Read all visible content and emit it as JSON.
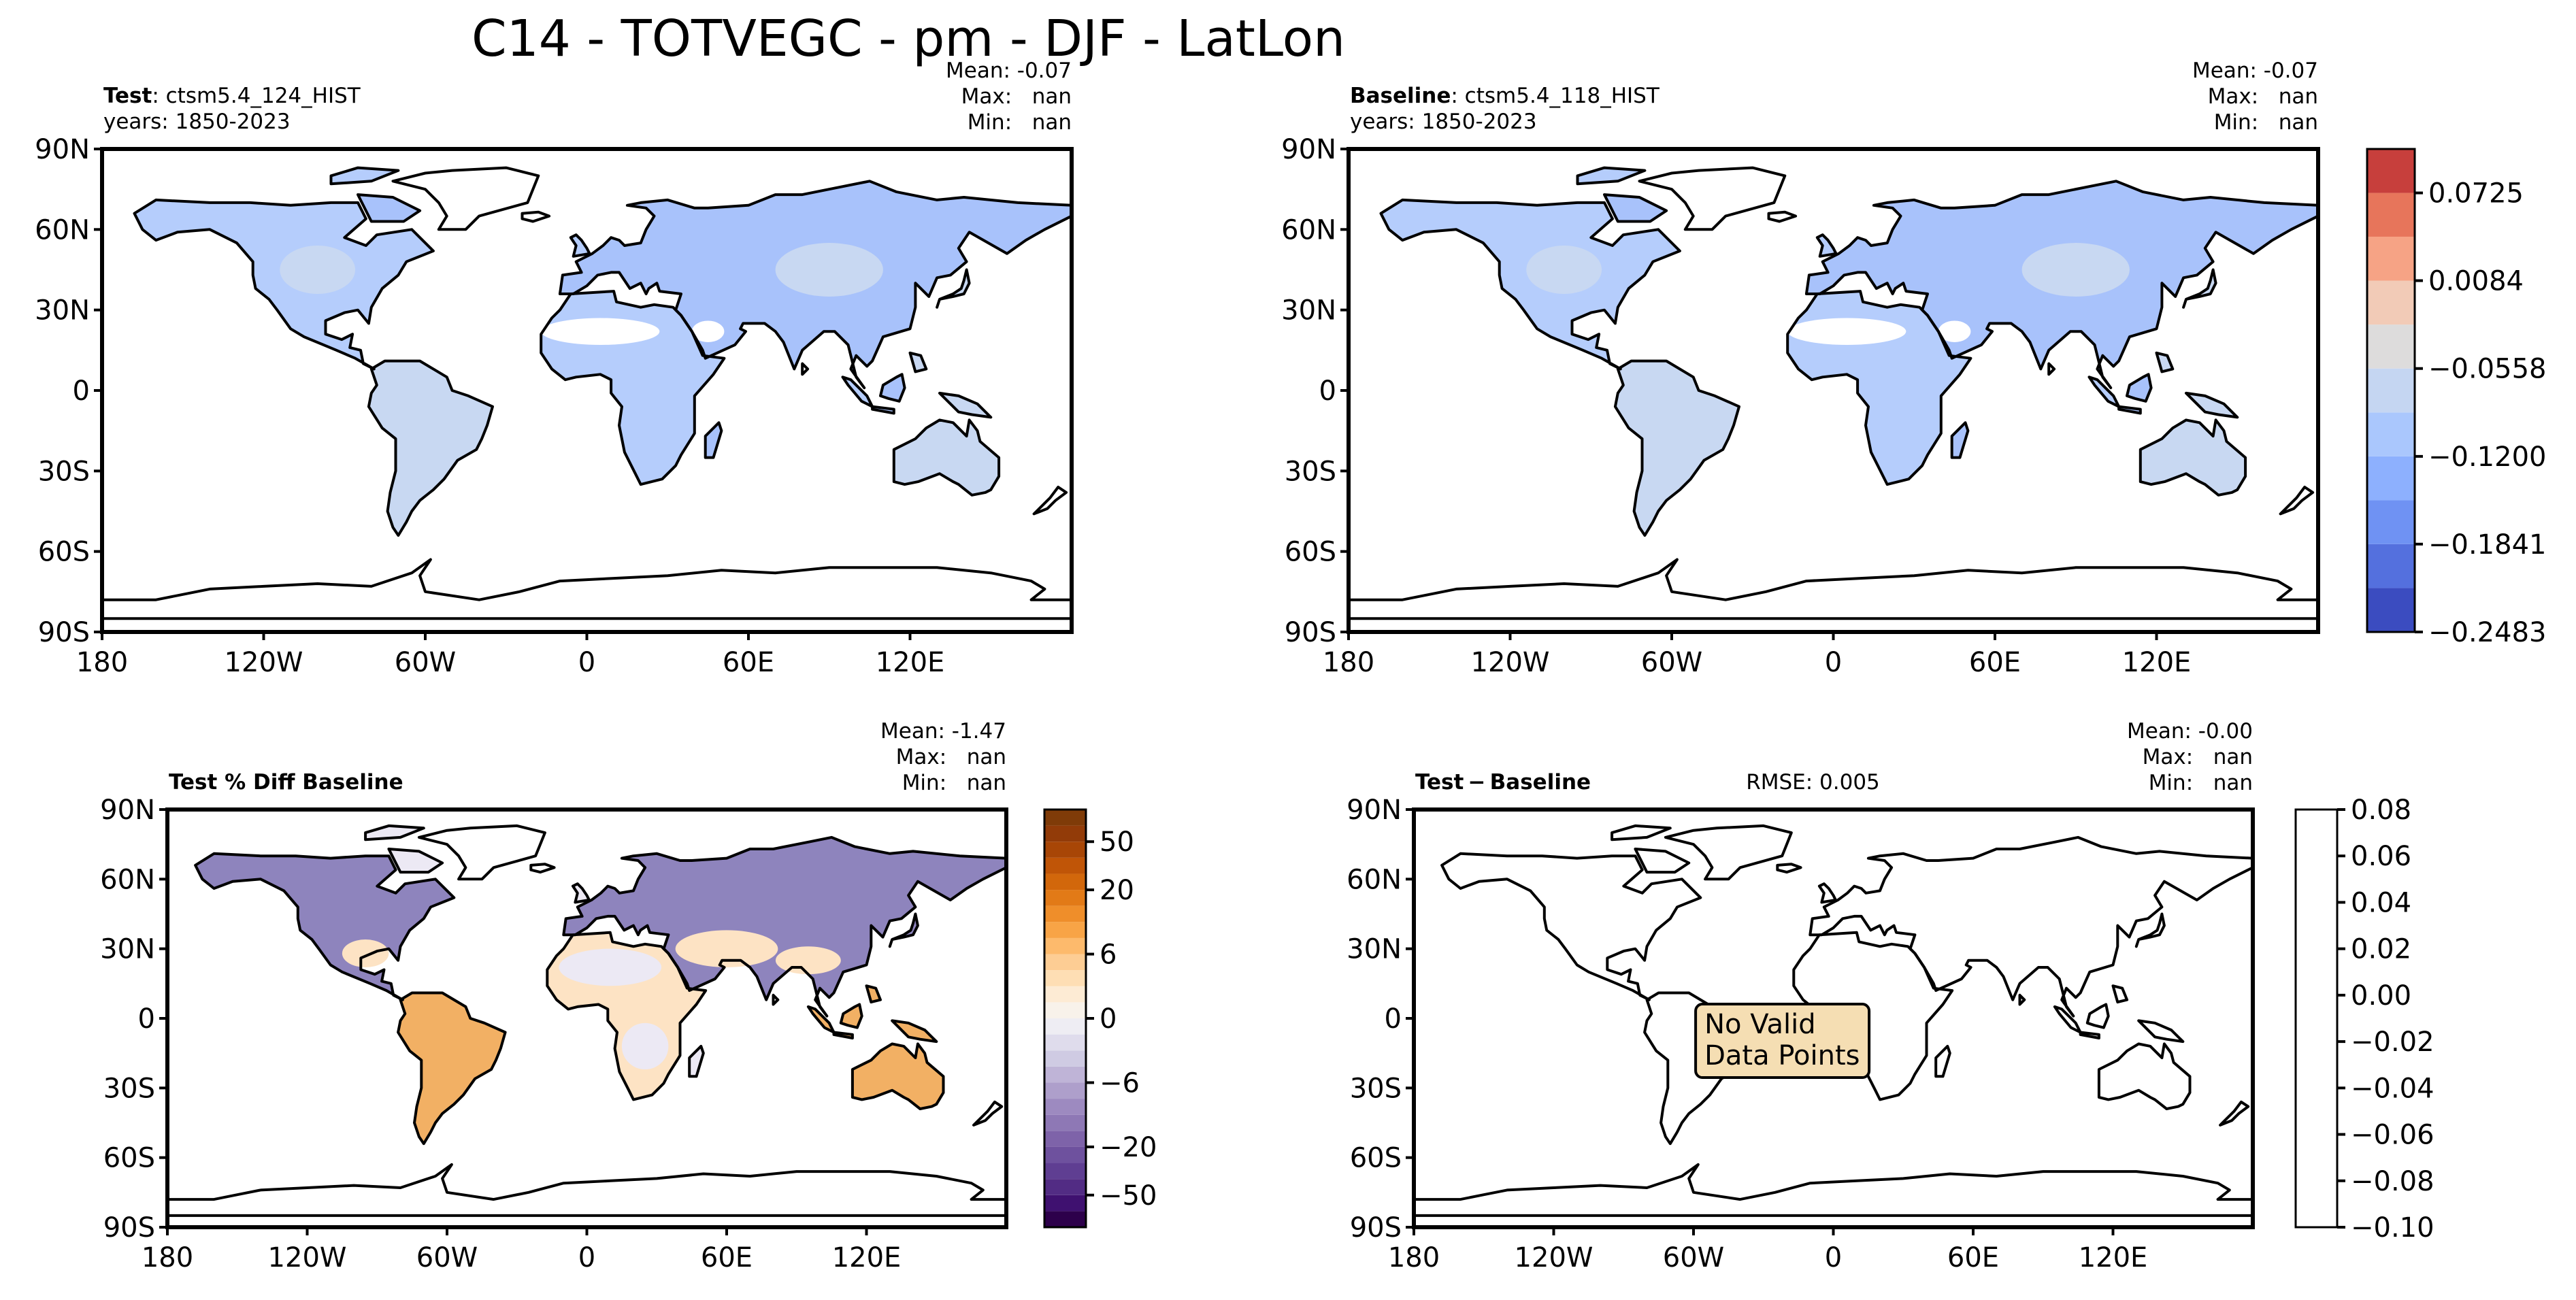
{
  "chart_data": {
    "suptitle": "C14 - TOTVEGC - pm - DJF - LatLon",
    "type": "heatmap",
    "lat_ticks": [
      "90N",
      "60N",
      "30N",
      "0",
      "30S",
      "60S",
      "90S"
    ],
    "lon_ticks": [
      "180",
      "120W",
      "60W",
      "0",
      "60E",
      "120E"
    ],
    "panels": [
      {
        "id": "test",
        "title_bold": "Test",
        "title_rest": ": ctsm5.4_124_HIST",
        "years": "years: 1850-2023",
        "mean": "Mean: -0.07",
        "max": "Max:   nan",
        "min": "Min:   nan",
        "rmse": "",
        "fill": "blue",
        "message": []
      },
      {
        "id": "baseline",
        "title_bold": "Baseline",
        "title_rest": ": ctsm5.4_118_HIST",
        "years": "years: 1850-2023",
        "mean": "Mean: -0.07",
        "max": "Max:   nan",
        "min": "Min:   nan",
        "rmse": "",
        "fill": "blue",
        "message": []
      },
      {
        "id": "pctdiff",
        "title_bold": "Test % Diff Baseline",
        "title_rest": "",
        "years": "",
        "mean": "Mean: -1.47",
        "max": "Max:   nan",
        "min": "Min:   nan",
        "rmse": "",
        "fill": "pct",
        "message": []
      },
      {
        "id": "diff",
        "title_bold": "Test − Baseline",
        "title_rest": "",
        "years": "",
        "mean": "Mean: -0.00",
        "max": "Max:   nan",
        "min": "Min:   nan",
        "rmse": "RMSE: 0.005",
        "fill": "none",
        "message": [
          "No Valid",
          "Data Points"
        ]
      }
    ],
    "colorbars": [
      {
        "id": "shared",
        "levels": [
          -0.2483,
          -0.2162,
          -0.1841,
          -0.1521,
          -0.12,
          -0.0879,
          -0.0558,
          -0.0237,
          0.0084,
          0.0405,
          0.0725,
          0.1046
        ],
        "colors": [
          "#3b4cc0",
          "#5470de",
          "#6f92f3",
          "#8db0fe",
          "#aac7fd",
          "#c5d6f2",
          "#dddcdc",
          "#f2cbb7",
          "#f6a385",
          "#e7755b",
          "#c73f3c"
        ],
        "tick_values": [
          -0.2483,
          -0.1841,
          -0.12,
          -0.0558,
          0.0084,
          0.0725
        ],
        "tick_labels": [
          "−0.2483",
          "−0.1841",
          "−0.1200",
          "−0.0558",
          "0.0084",
          "0.0725"
        ]
      },
      {
        "id": "pct",
        "levels": [
          -100,
          -70,
          -50,
          -40,
          -30,
          -20,
          -15,
          -10,
          -8,
          -6,
          -4,
          -2,
          -1,
          0,
          1,
          2,
          4,
          6,
          8,
          10,
          15,
          20,
          30,
          40,
          50,
          70,
          100
        ],
        "colors": [
          "#2d004b",
          "#3f1170",
          "#522c84",
          "#5f3e92",
          "#6e519e",
          "#7e63a9",
          "#8e78b5",
          "#9d8ac0",
          "#ae9fcb",
          "#bfb4d7",
          "#cfcbe3",
          "#dfdcec",
          "#eeedf3",
          "#f8f2ea",
          "#fdebd4",
          "#fedeb4",
          "#fdcd94",
          "#fdba6c",
          "#f8a446",
          "#ef8e2a",
          "#e27a17",
          "#d2670b",
          "#c05507",
          "#a84606",
          "#923b08",
          "#7f3b08"
        ],
        "tick_values": [
          -50,
          -20,
          -6,
          0,
          6,
          20,
          50
        ],
        "tick_labels": [
          "−50",
          "−20",
          "−6",
          "0",
          "6",
          "20",
          "50"
        ]
      },
      {
        "id": "diff",
        "levels": [
          -0.1,
          0.08
        ],
        "colors": [
          "#ffffff"
        ],
        "tick_values": [
          -0.1,
          -0.08,
          -0.06,
          -0.04,
          -0.02,
          0.0,
          0.02,
          0.04,
          0.06,
          0.08
        ],
        "tick_labels": [
          "−0.10",
          "−0.08",
          "−0.06",
          "−0.04",
          "−0.02",
          "0.00",
          "0.02",
          "0.04",
          "0.06",
          "0.08"
        ]
      }
    ]
  },
  "colors": {
    "frame": "#000000",
    "blue_land_a": "#b5cdfc",
    "blue_land_b": "#c8d8f2",
    "blue_land_c": "#a8c2fb",
    "desert_white": "#ffffff",
    "pct_purple": "#8e84bd",
    "pct_light": "#ece9f4",
    "pct_orange": "#f2b064",
    "pct_peach": "#fde3c4",
    "novalid_box": "#f5deb3"
  }
}
